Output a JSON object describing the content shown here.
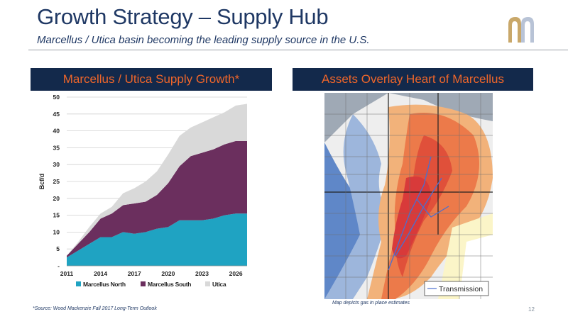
{
  "slide": {
    "title": "Growth Strategy – Supply Hub",
    "subtitle": "Marcellus / Utica basin becoming the leading supply source in the U.S.",
    "page_number": "12"
  },
  "left_panel": {
    "header": "Marcellus / Utica Supply Growth*"
  },
  "right_panel": {
    "header": "Assets Overlay Heart of Marcellus",
    "legend_label": "Transmission",
    "map_note": "Map depicts gas in place estimates"
  },
  "footnote": "*Source: Wood Mackenzie Fall 2017 Long-Term Outlook",
  "colors": {
    "navy": "#13294b",
    "orange": "#f0662a",
    "marcellus_north": "#1fa3c2",
    "marcellus_south": "#6b2f5e",
    "utica": "#d9d9d9"
  },
  "chart_data": {
    "type": "area",
    "stacked": true,
    "ylabel": "Bcf/d",
    "ylim": [
      0,
      50
    ],
    "y_ticks": [
      "-",
      "5",
      "10",
      "15",
      "20",
      "25",
      "30",
      "35",
      "40",
      "45",
      "50"
    ],
    "x_ticks": [
      "2011",
      "2014",
      "2017",
      "2020",
      "2023",
      "2026"
    ],
    "x": [
      2011,
      2012,
      2013,
      2014,
      2015,
      2016,
      2017,
      2018,
      2019,
      2020,
      2021,
      2022,
      2023,
      2024,
      2025,
      2026,
      2027
    ],
    "legend_position": "bottom",
    "series": [
      {
        "name": "Marcellus North",
        "color": "#1fa3c2",
        "values": [
          2.5,
          4.5,
          6.5,
          8.5,
          8.5,
          10,
          9.5,
          10,
          11,
          11.5,
          13.5,
          13.5,
          13.5,
          14,
          15,
          15.5,
          15.5
        ]
      },
      {
        "name": "Marcellus South",
        "color": "#6b2f5e",
        "values": [
          0.5,
          2,
          3.5,
          5.5,
          7,
          8,
          9,
          9,
          10,
          13,
          16,
          19,
          20,
          20.5,
          21,
          21.5,
          21.5
        ]
      },
      {
        "name": "Utica",
        "color": "#d9d9d9",
        "values": [
          0,
          0.5,
          1.5,
          1.5,
          2,
          3.5,
          4.5,
          6,
          7,
          8.5,
          9,
          8.5,
          9,
          9.5,
          9.5,
          10.5,
          11
        ]
      }
    ]
  }
}
